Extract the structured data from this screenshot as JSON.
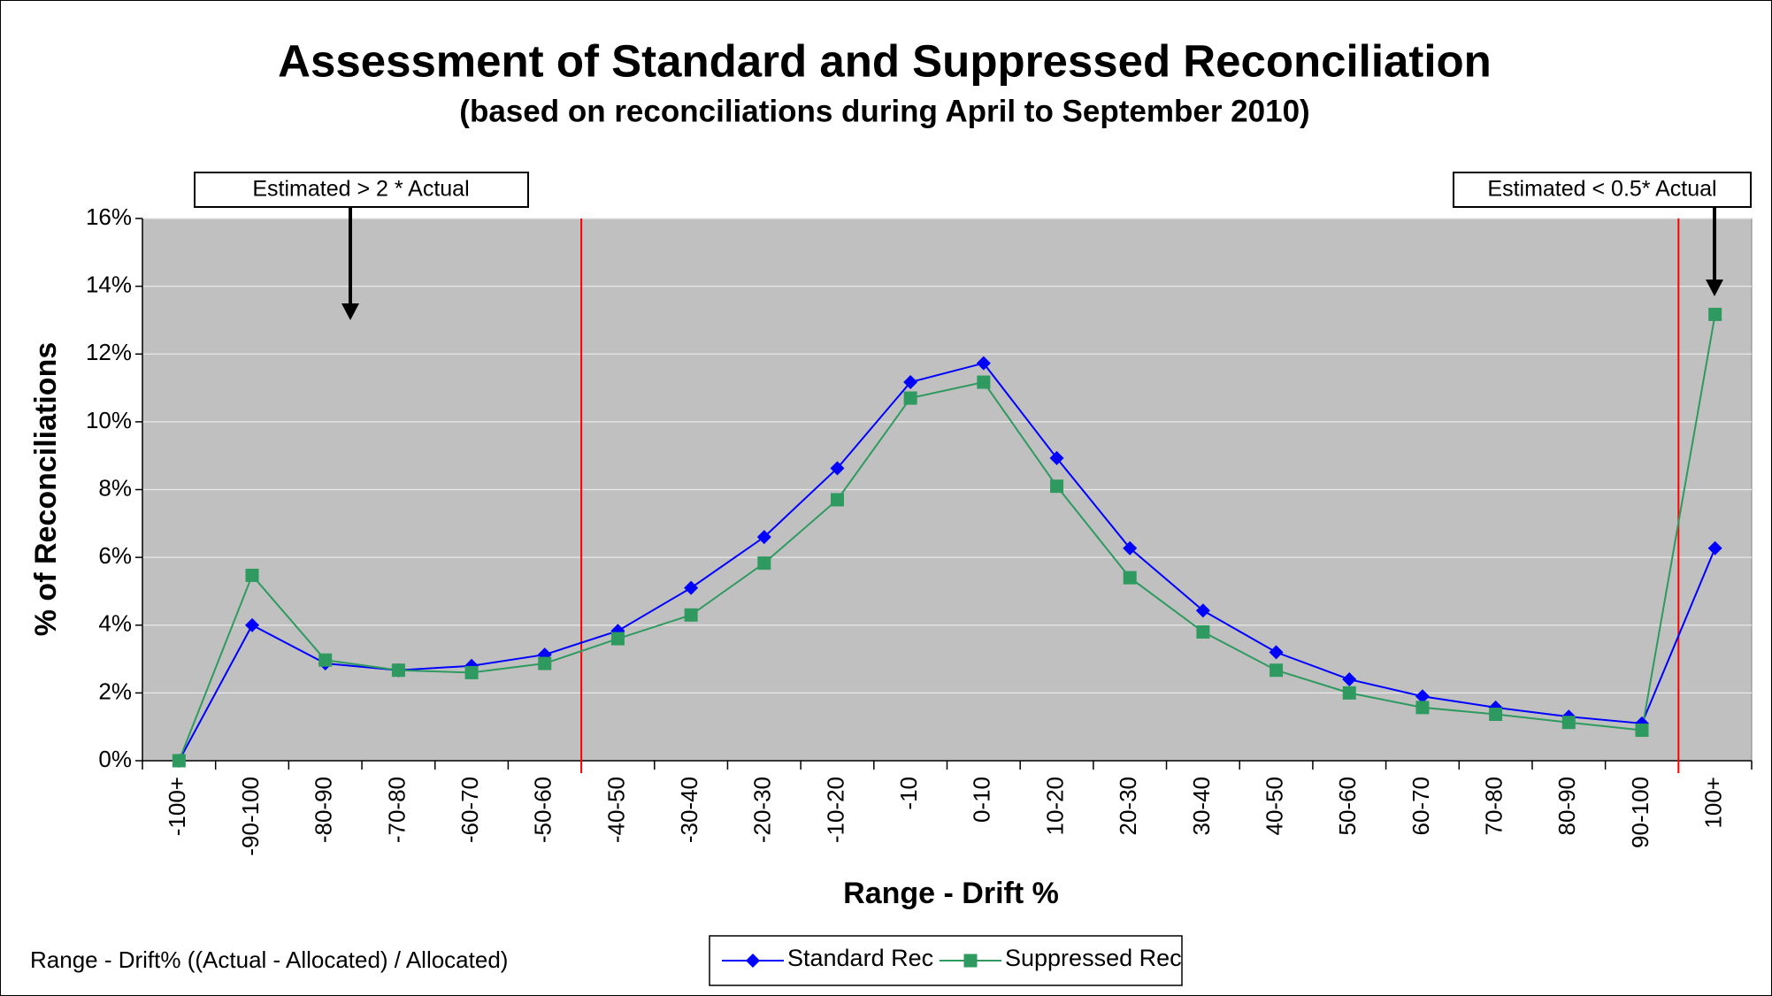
{
  "chart_data": {
    "type": "line",
    "title": "Assessment of Standard and Suppressed Reconciliation",
    "subtitle": "(based on reconciliations during April to September 2010)",
    "x_label": "Range - Drift %",
    "y_label": "% of Reconciliations",
    "annotations": [
      "Estimated > 2 * Actual",
      "Estimated < 0.5* Actual",
      "Range - Drift% ((Actual - Allocated) / Allocated)"
    ],
    "categories": [
      "-100+",
      "-90-100",
      "-80-90",
      "-70-80",
      "-60-70",
      "-50-60",
      "-40-50",
      "-30-40",
      "-20-30",
      "-10-20",
      "-10",
      "0-10",
      "10-20",
      "20-30",
      "30-40",
      "40-50",
      "50-60",
      "60-70",
      "70-80",
      "80-90",
      "90-100",
      "100+"
    ],
    "series": [
      {
        "name": "Standard Rec",
        "color": "#0000ff",
        "marker": "diamond",
        "values": [
          0,
          4.0,
          2.87,
          2.67,
          2.8,
          3.13,
          3.83,
          5.1,
          6.6,
          8.63,
          11.17,
          11.73,
          8.93,
          6.27,
          4.43,
          3.2,
          2.4,
          1.9,
          1.57,
          1.3,
          1.1,
          6.27
        ]
      },
      {
        "name": "Suppressed Rec",
        "color": "#2e9a60",
        "marker": "square",
        "values": [
          0,
          5.47,
          2.97,
          2.67,
          2.6,
          2.87,
          3.6,
          4.3,
          5.83,
          7.7,
          10.7,
          11.17,
          8.1,
          5.4,
          3.8,
          2.67,
          2.0,
          1.57,
          1.37,
          1.13,
          0.9,
          13.17
        ]
      }
    ],
    "ylim": [
      0,
      16
    ],
    "yticks": [
      {
        "value": 0,
        "label": "0%"
      },
      {
        "value": 2,
        "label": "2%"
      },
      {
        "value": 4,
        "label": "4%"
      },
      {
        "value": 6,
        "label": "6%"
      },
      {
        "value": 8,
        "label": "8%"
      },
      {
        "value": 10,
        "label": "10%"
      },
      {
        "value": 12,
        "label": "12%"
      },
      {
        "value": 14,
        "label": "14%"
      },
      {
        "value": 16,
        "label": "16%"
      }
    ],
    "grid": true
  }
}
